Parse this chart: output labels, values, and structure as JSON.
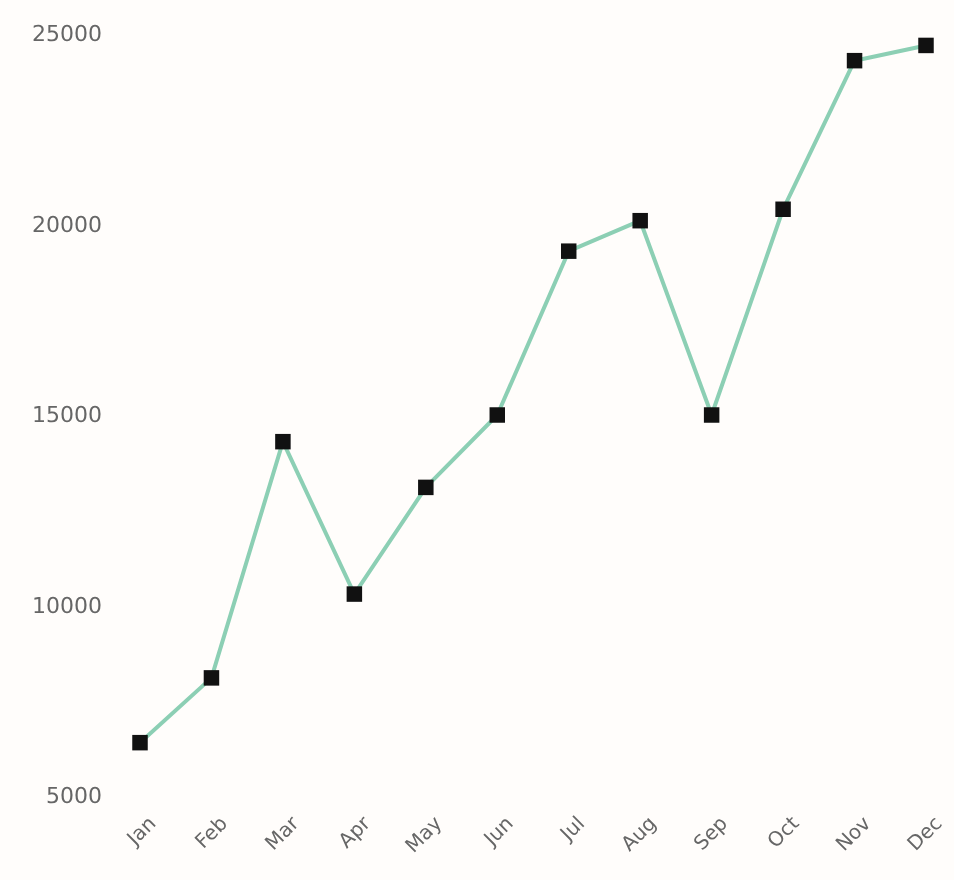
{
  "chart_data": {
    "type": "line",
    "categories": [
      "Jan",
      "Feb",
      "Mar",
      "Apr",
      "May",
      "Jun",
      "Jul",
      "Aug",
      "Sep",
      "Oct",
      "Nov",
      "Dec"
    ],
    "series": [
      {
        "color": "#8ccfb4",
        "values": [
          6400,
          8100,
          14300,
          10300,
          13100,
          15000,
          19300,
          20100,
          15000,
          20400,
          24300,
          24700
        ]
      }
    ],
    "ylim": [
      5000,
      25000
    ],
    "yticks": [
      5000,
      10000,
      15000,
      20000,
      25000
    ],
    "marker": "square",
    "grid": false
  }
}
